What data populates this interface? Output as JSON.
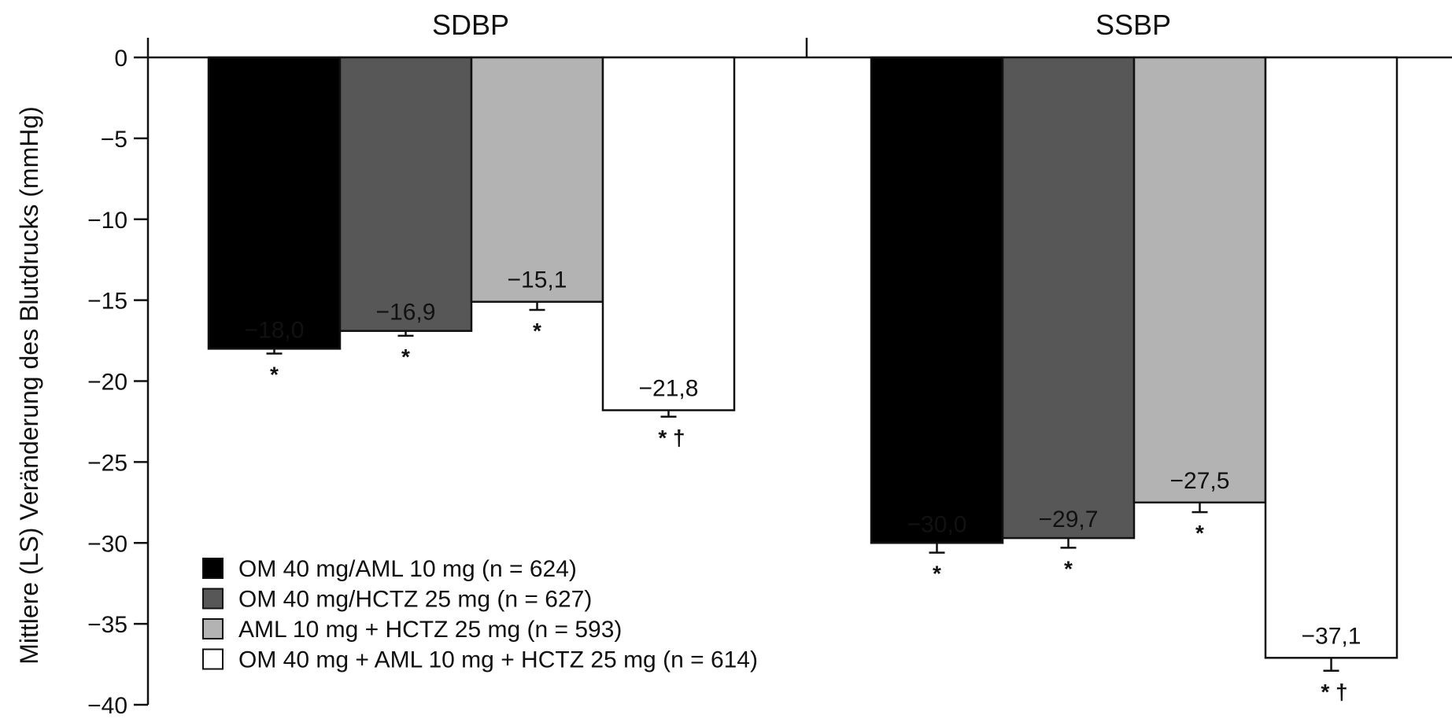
{
  "chart_data": {
    "type": "bar",
    "ylabel": "Mittlere (LS) Veränderung des Blutdrucks (mmHg)",
    "ylim": [
      -40,
      0
    ],
    "yticks": [
      "0",
      "−5",
      "−10",
      "−15",
      "−20",
      "−25",
      "−30",
      "−35",
      "−40"
    ],
    "categories": [
      "SDBP",
      "SSBP"
    ],
    "legend_position": "bottom-left",
    "grid": false,
    "series": [
      {
        "name": "OM 40 mg/AML 10 mg (n = 624)",
        "color": "#000000",
        "values": [
          -18.0,
          -30.0
        ],
        "labels": [
          "−18,0",
          "−30,0"
        ],
        "errors": [
          0.3,
          0.6
        ],
        "significance": [
          "*",
          "*"
        ]
      },
      {
        "name": "OM 40 mg/HCTZ 25 mg (n = 627)",
        "color": "#575757",
        "values": [
          -16.9,
          -29.7
        ],
        "labels": [
          "−16,9",
          "−29,7"
        ],
        "errors": [
          0.3,
          0.6
        ],
        "significance": [
          "*",
          "*"
        ]
      },
      {
        "name": "AML 10 mg + HCTZ 25 mg (n = 593)",
        "color": "#b3b3b3",
        "values": [
          -15.1,
          -27.5
        ],
        "labels": [
          "−15,1",
          "−27,5"
        ],
        "errors": [
          0.5,
          0.6
        ],
        "significance": [
          "*",
          "*"
        ]
      },
      {
        "name": "OM 40 mg + AML 10 mg + HCTZ 25 mg (n = 614)",
        "color": "#ffffff",
        "values": [
          -21.8,
          -37.1
        ],
        "labels": [
          "−21,8",
          "−37,1"
        ],
        "errors": [
          0.4,
          0.8
        ],
        "significance": [
          "* †",
          "* †"
        ]
      }
    ]
  }
}
